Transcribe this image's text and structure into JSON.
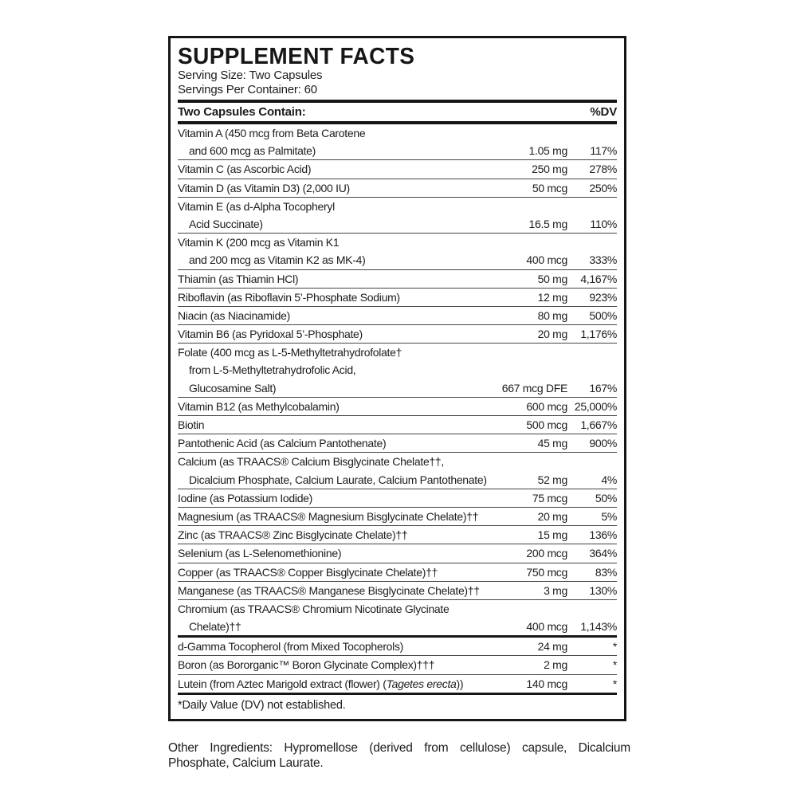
{
  "label": {
    "title": "SUPPLEMENT FACTS",
    "serving_size": "Serving Size: Two Capsules",
    "servings_per_container": "Servings Per Container: 60",
    "columns": {
      "contain": "Two Capsules Contain:",
      "dv": "%DV"
    },
    "rows": [
      {
        "lines": [
          "Vitamin A (450 mcg from Beta Carotene",
          "and 600 mcg as Palmitate)"
        ],
        "amount": "1.05 mg",
        "dv": "117%"
      },
      {
        "lines": [
          "Vitamin C (as Ascorbic Acid)"
        ],
        "amount": "250 mg",
        "dv": "278%"
      },
      {
        "lines": [
          "Vitamin D (as Vitamin D3) (2,000 IU)"
        ],
        "amount": "50 mcg",
        "dv": "250%"
      },
      {
        "lines": [
          "Vitamin E (as d-Alpha Tocopheryl",
          "Acid Succinate)"
        ],
        "amount": "16.5 mg",
        "dv": "110%"
      },
      {
        "lines": [
          "Vitamin K (200 mcg as Vitamin K1",
          "and 200 mcg as Vitamin K2 as MK-4)"
        ],
        "amount": "400 mcg",
        "dv": "333%"
      },
      {
        "lines": [
          "Thiamin (as Thiamin HCl)"
        ],
        "amount": "50 mg",
        "dv": "4,167%"
      },
      {
        "lines": [
          "Riboflavin (as Riboflavin 5’-Phosphate Sodium)"
        ],
        "amount": "12 mg",
        "dv": "923%"
      },
      {
        "lines": [
          "Niacin (as Niacinamide)"
        ],
        "amount": "80 mg",
        "dv": "500%"
      },
      {
        "lines": [
          "Vitamin B6 (as Pyridoxal 5’-Phosphate)"
        ],
        "amount": "20 mg",
        "dv": "1,176%"
      },
      {
        "lines": [
          "Folate (400 mcg as L-5-Methyltetrahydrofolate†",
          "from L-5-Methyltetrahydrofolic Acid,",
          "Glucosamine Salt)"
        ],
        "amount": "667 mcg DFE",
        "dv": "167%"
      },
      {
        "lines": [
          "Vitamin B12 (as Methylcobalamin)"
        ],
        "amount": "600 mcg",
        "dv": "25,000%"
      },
      {
        "lines": [
          "Biotin"
        ],
        "amount": "500 mcg",
        "dv": "1,667%"
      },
      {
        "lines": [
          "Pantothenic Acid (as Calcium Pantothenate)"
        ],
        "amount": "45 mg",
        "dv": "900%"
      },
      {
        "lines": [
          "Calcium (as TRAACS® Calcium Bisglycinate Chelate††,",
          "Dicalcium Phosphate, Calcium Laurate, Calcium Pantothenate)"
        ],
        "amount": "52 mg",
        "dv": "4%"
      },
      {
        "lines": [
          "Iodine (as Potassium Iodide)"
        ],
        "amount": "75 mcg",
        "dv": "50%"
      },
      {
        "lines": [
          "Magnesium (as TRAACS® Magnesium Bisglycinate Chelate)††"
        ],
        "amount": "20 mg",
        "dv": "5%"
      },
      {
        "lines": [
          "Zinc (as TRAACS® Zinc Bisglycinate Chelate)††"
        ],
        "amount": "15 mg",
        "dv": "136%"
      },
      {
        "lines": [
          "Selenium (as L-Selenomethionine)"
        ],
        "amount": "200 mcg",
        "dv": "364%"
      },
      {
        "lines": [
          "Copper (as TRAACS® Copper Bisglycinate Chelate)††"
        ],
        "amount": "750 mcg",
        "dv": "83%"
      },
      {
        "lines": [
          "Manganese (as TRAACS® Manganese Bisglycinate Chelate)††"
        ],
        "amount": "3 mg",
        "dv": "130%"
      },
      {
        "lines": [
          "Chromium (as TRAACS® Chromium Nicotinate Glycinate",
          "Chelate)††"
        ],
        "amount": "400 mcg",
        "dv": "1,143%",
        "thick_after": true
      },
      {
        "lines": [
          "d-Gamma Tocopherol (from Mixed Tocopherols)"
        ],
        "amount": "24 mg",
        "dv": "*"
      },
      {
        "lines": [
          "Boron (as Bororganic™ Boron Glycinate Complex)†††"
        ],
        "amount": "2 mg",
        "dv": "*"
      },
      {
        "lines": [
          [
            {
              "text": "Lutein (from Aztec Marigold extract (flower) ("
            },
            {
              "text": "Tagetes erecta",
              "italic": true
            },
            {
              "text": "))"
            }
          ]
        ],
        "amount": "140 mcg",
        "dv": "*",
        "thick_after": true
      }
    ],
    "footnote": "*Daily Value (DV) not established.",
    "other_ingredients": "Other Ingredients: Hypromellose (derived from cellulose) capsule, Dicalcium Phosphate, Calcium Laurate."
  }
}
